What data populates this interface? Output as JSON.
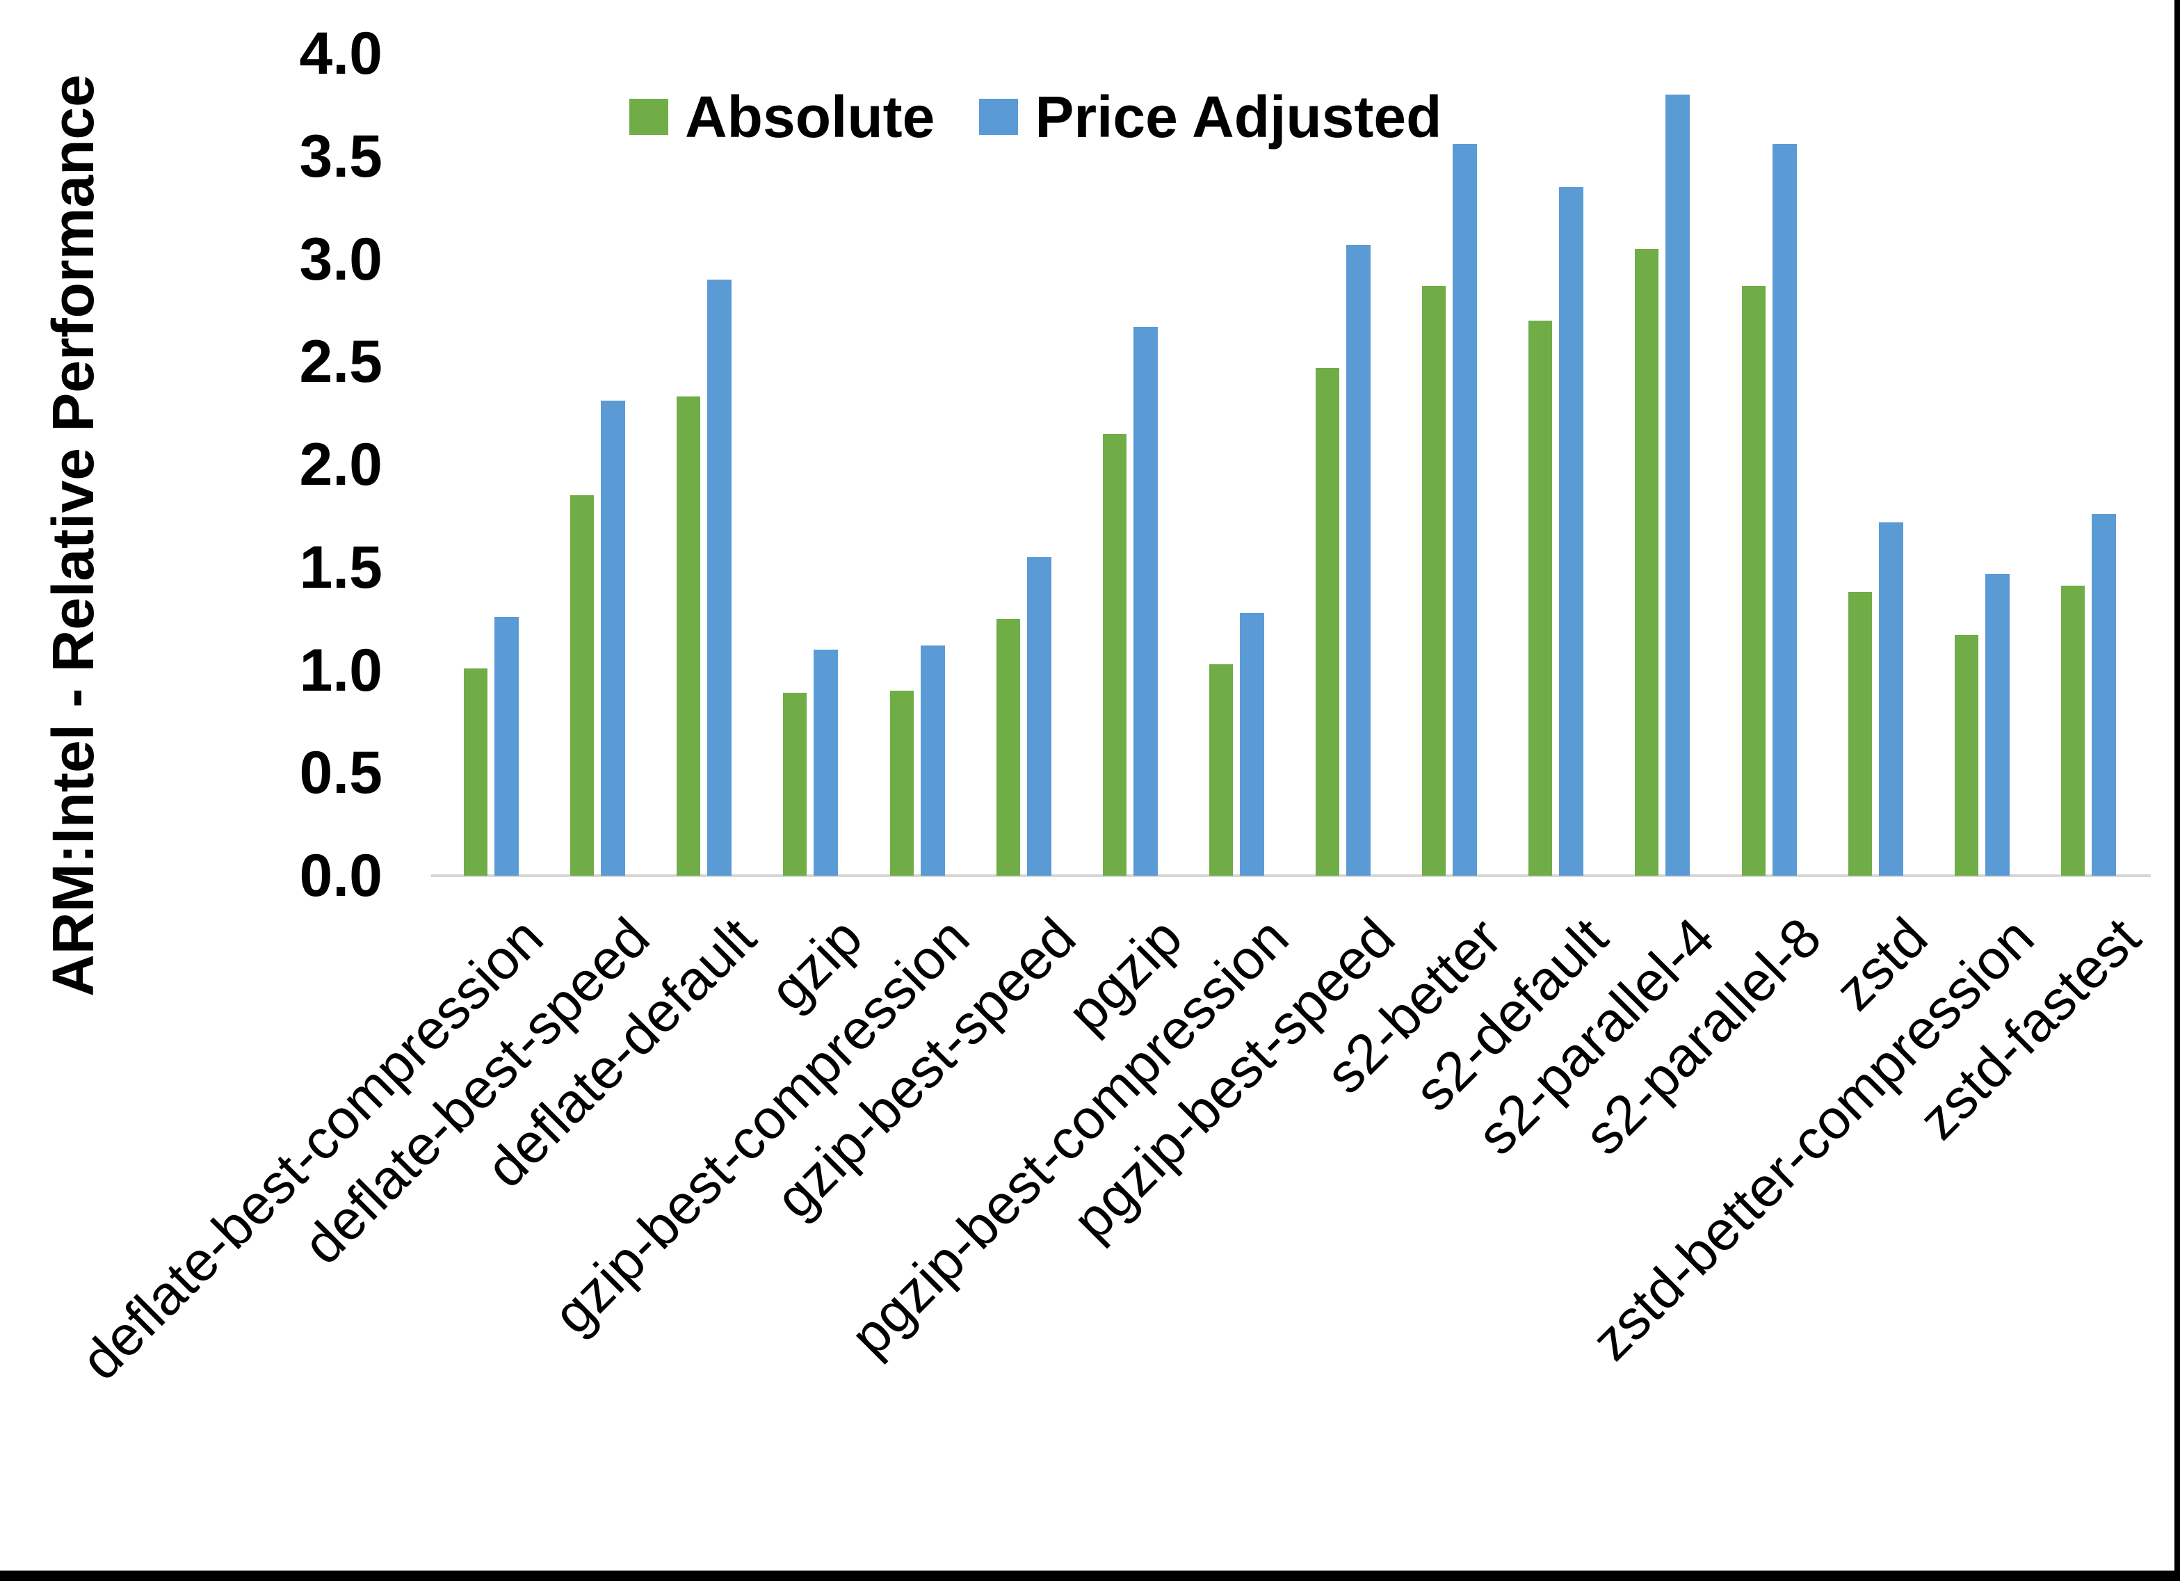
{
  "chart_data": {
    "type": "bar",
    "title": "",
    "xlabel": "",
    "ylabel": "ARM:Intel - Relative Performance",
    "ylim": [
      0.0,
      4.0
    ],
    "ytick_step": 0.5,
    "ytick_labels": [
      "0.0",
      "0.5",
      "1.0",
      "1.5",
      "2.0",
      "2.5",
      "3.0",
      "3.5",
      "4.0"
    ],
    "grid": false,
    "legend_position": "top-center",
    "categories": [
      "deflate-best-compression",
      "deflate-best-speed",
      "deflate-default",
      "gzip",
      "gzip-best-compression",
      "gzip-best-speed",
      "pgzip",
      "pgzip-best-compression",
      "pgzip-best-speed",
      "s2-better",
      "s2-default",
      "s2-parallel-4",
      "s2-parallel-8",
      "zstd",
      "zstd-better-compression",
      "zstd-fastest"
    ],
    "series": [
      {
        "name": "Absolute",
        "color": "#70AD47",
        "values": [
          1.01,
          1.85,
          2.33,
          0.89,
          0.9,
          1.25,
          2.15,
          1.03,
          2.47,
          2.87,
          2.7,
          3.05,
          2.87,
          1.38,
          1.17,
          1.41
        ]
      },
      {
        "name": "Price Adjusted",
        "color": "#5B9BD5",
        "values": [
          1.26,
          2.31,
          2.9,
          1.1,
          1.12,
          1.55,
          2.67,
          1.28,
          3.07,
          3.56,
          3.35,
          3.8,
          3.56,
          1.72,
          1.47,
          1.76
        ]
      }
    ]
  },
  "colors": {
    "background": "#FFFFFF",
    "axis_line": "#D6D6D6",
    "text": "#000000",
    "frame": "#000000"
  }
}
